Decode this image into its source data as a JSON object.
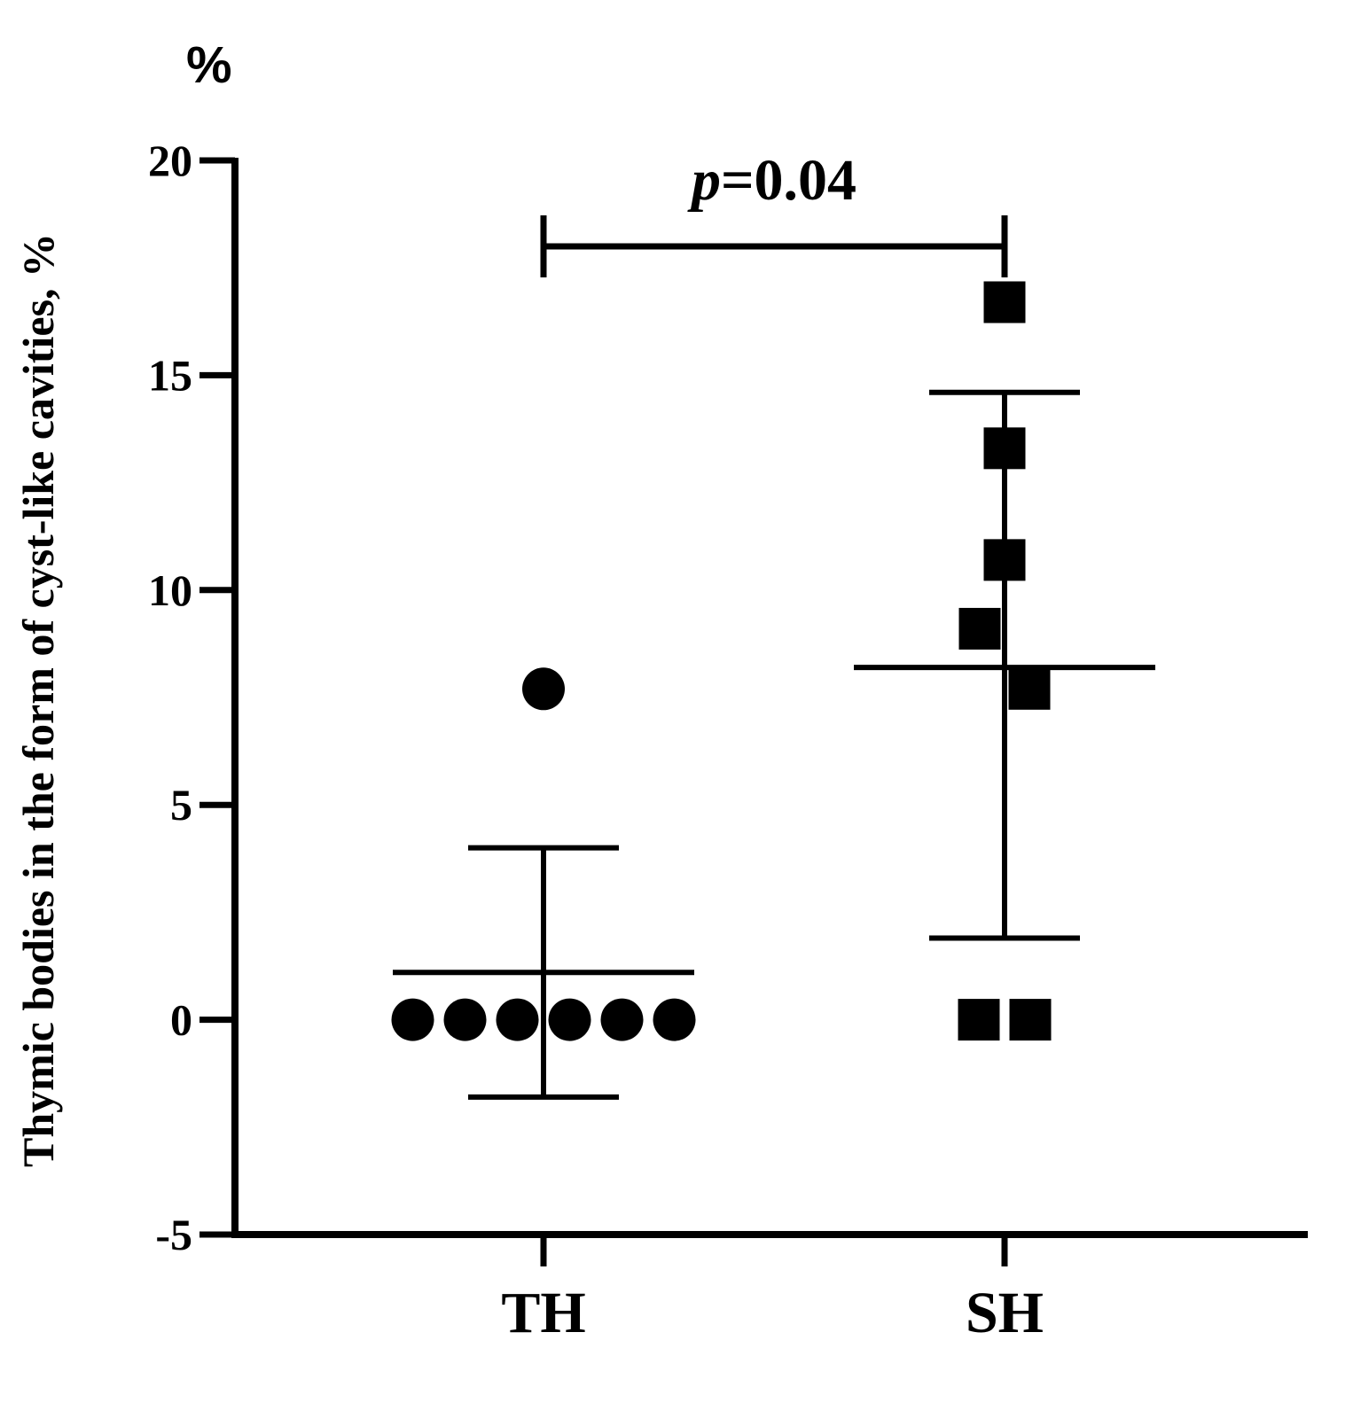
{
  "chart_data": {
    "type": "scatter",
    "title": "",
    "ylabel": "Thymic bodies in the form of cyst-like cavities, %",
    "unit_label": "%",
    "xlabel": "",
    "categories": [
      "TH",
      "SH"
    ],
    "ylim": [
      -5,
      20
    ],
    "yticks": [
      "-5",
      "0",
      "5",
      "10",
      "15",
      "20"
    ],
    "grid": false,
    "series": [
      {
        "name": "TH",
        "marker": "circle",
        "values": [
          7.7,
          0,
          0,
          0,
          0,
          0,
          0
        ],
        "mean": 1.1,
        "sd_upper": 4.0,
        "sd_lower": -1.8
      },
      {
        "name": "SH",
        "marker": "square",
        "values": [
          16.7,
          13.3,
          10.7,
          9.1,
          7.7,
          0,
          0
        ],
        "mean": 8.2,
        "sd_upper": 14.6,
        "sd_lower": 1.9
      }
    ],
    "annotation": {
      "p_symbol": "p",
      "p_text": "=0.04",
      "bracket_y": 18.0
    }
  }
}
